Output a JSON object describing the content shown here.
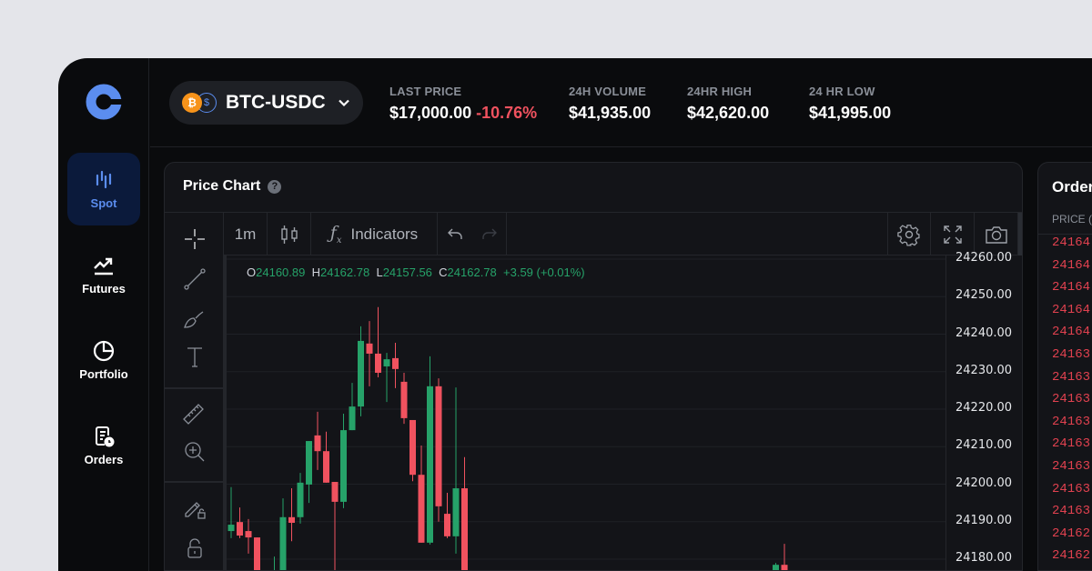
{
  "sidebar": {
    "items": [
      {
        "label": "Spot",
        "icon": "candles-icon",
        "active": true
      },
      {
        "label": "Futures",
        "icon": "trend-up-icon"
      },
      {
        "label": "Portfolio",
        "icon": "pie-chart-icon"
      },
      {
        "label": "Orders",
        "icon": "orders-clock-icon"
      }
    ]
  },
  "header": {
    "pair": "BTC-USDC",
    "btc_symbol": "₿",
    "usdc_symbol": "$",
    "stats": [
      {
        "label": "LAST PRICE",
        "value": "$17,000.00",
        "change": "-10.76%"
      },
      {
        "label": "24H VOLUME",
        "value": "$41,935.00"
      },
      {
        "label": "24HR HIGH",
        "value": "$42,620.00"
      },
      {
        "label": "24 HR LOW",
        "value": "$41,995.00"
      }
    ]
  },
  "chart_panel": {
    "title": "Price Chart",
    "help": "?",
    "toolbar": {
      "interval": "1m",
      "indicators": "Indicators"
    },
    "ohlc": {
      "o_label": "O",
      "o": "24160.89",
      "h_label": "H",
      "h": "24162.78",
      "l_label": "L",
      "l": "24157.56",
      "c_label": "C",
      "c": "24162.78",
      "change": "+3.59 (+0.01%)"
    }
  },
  "colors": {
    "up": "#26a269",
    "down": "#f0525f",
    "accent": "#5b8def",
    "btc": "#f7931a",
    "negative": "#f0525f"
  },
  "chart_data": {
    "type": "candlestick",
    "ylim": [
      24170,
      24260
    ],
    "y_ticks": [
      "24260.00",
      "24250.00",
      "24240.00",
      "24230.00",
      "24220.00",
      "24210.00",
      "24200.00",
      "24190.00",
      "24180.00"
    ],
    "grid": true,
    "candles": [
      {
        "o": 24187.5,
        "h": 24199.2,
        "l": 24185.6,
        "c": 24189.2
      },
      {
        "o": 24189.9,
        "h": 24193.8,
        "l": 24185.6,
        "c": 24186.3
      },
      {
        "o": 24187.5,
        "h": 24190.7,
        "l": 24181.5,
        "c": 24185.8
      },
      {
        "o": 24185.8,
        "h": 24185.8,
        "l": 24165,
        "c": 24168
      },
      {
        "o": 24168,
        "h": 24171,
        "l": 24160,
        "c": 24163
      },
      {
        "o": 24165,
        "h": 24180.7,
        "l": 24162,
        "c": 24172
      },
      {
        "o": 24172,
        "h": 24196.2,
        "l": 24168,
        "c": 24191.2
      },
      {
        "o": 24191.2,
        "h": 24198.9,
        "l": 24184.8,
        "c": 24189.7
      },
      {
        "o": 24191.2,
        "h": 24203.0,
        "l": 24189.5,
        "c": 24200.4
      },
      {
        "o": 24199.9,
        "h": 24211.5,
        "l": 24195.0,
        "c": 24211.5
      },
      {
        "o": 24213.0,
        "h": 24219.3,
        "l": 24203.8,
        "c": 24208.8
      },
      {
        "o": 24208.8,
        "h": 24214.0,
        "l": 24200.4,
        "c": 24200.4
      },
      {
        "o": 24200.6,
        "h": 24200.6,
        "l": 24165,
        "c": 24195.3
      },
      {
        "o": 24195.3,
        "h": 24218.8,
        "l": 24193.6,
        "c": 24214.4
      },
      {
        "o": 24214.4,
        "h": 24227.0,
        "l": 24214.4,
        "c": 24220.7
      },
      {
        "o": 24220.7,
        "h": 24242.1,
        "l": 24218.1,
        "c": 24238.2
      },
      {
        "o": 24237.5,
        "h": 24243.5,
        "l": 24226.1,
        "c": 24234.8
      },
      {
        "o": 24234.8,
        "h": 24247.2,
        "l": 24228.5,
        "c": 24229.7
      },
      {
        "o": 24231.4,
        "h": 24235.0,
        "l": 24221.9,
        "c": 24233.3
      },
      {
        "o": 24233.6,
        "h": 24237.7,
        "l": 24225.6,
        "c": 24230.7
      },
      {
        "o": 24227.3,
        "h": 24229.7,
        "l": 24216.1,
        "c": 24217.6
      },
      {
        "o": 24217.1,
        "h": 24217.1,
        "l": 24200.8,
        "c": 24202.5
      },
      {
        "o": 24202.5,
        "h": 24210.3,
        "l": 24184.4,
        "c": 24184.4
      },
      {
        "o": 24184.4,
        "h": 24234.1,
        "l": 24183.9,
        "c": 24226.1
      },
      {
        "o": 24226.1,
        "h": 24228.2,
        "l": 24190.0,
        "c": 24194.1
      },
      {
        "o": 24192.1,
        "h": 24197.7,
        "l": 24185.6,
        "c": 24186.1
      },
      {
        "o": 24186.1,
        "h": 24225.8,
        "l": 24181.5,
        "c": 24198.9
      },
      {
        "o": 24198.9,
        "h": 24207.2,
        "l": 24165,
        "c": 24168
      },
      null,
      null,
      null,
      null,
      null,
      null,
      null,
      null,
      null,
      null,
      null,
      null,
      null,
      null,
      null,
      null,
      null,
      null,
      null,
      null,
      null,
      null,
      null,
      null,
      null,
      null,
      null,
      null,
      null,
      null,
      null,
      null,
      null,
      null,
      null,
      {
        "o": 24168,
        "h": 24179.0,
        "l": 24165,
        "c": 24178.5
      },
      {
        "o": 24178.5,
        "h": 24184.1,
        "l": 24165,
        "c": 24170
      }
    ]
  },
  "order_book": {
    "title": "Order Book",
    "price_header": "PRICE (USDC)",
    "asks": [
      "24164.",
      "24164.",
      "24164.",
      "24164.",
      "24164.",
      "24163.",
      "24163.",
      "24163.",
      "24163.",
      "24163.",
      "24163.",
      "24163.",
      "24163.",
      "24162.",
      "24162."
    ]
  }
}
